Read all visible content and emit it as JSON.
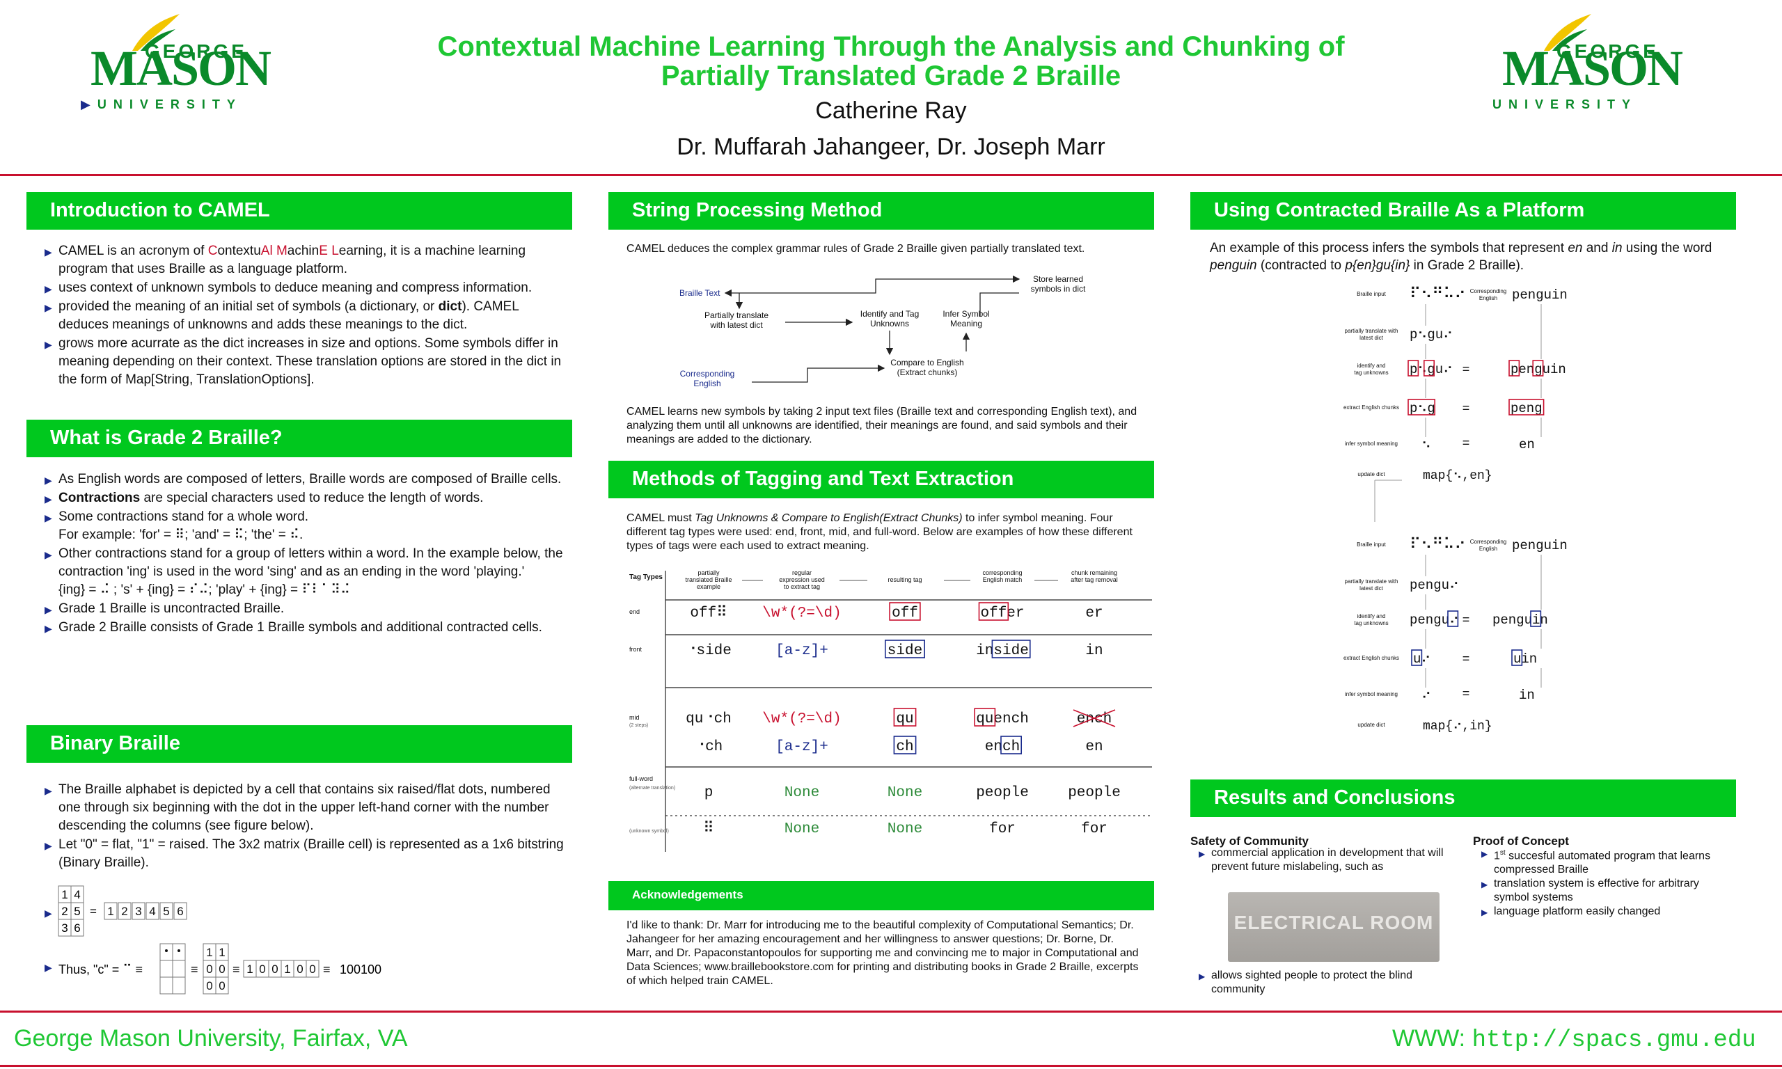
{
  "header": {
    "title_line1": "Contextual Machine Learning Through the Analysis and Chunking of",
    "title_line2": "Partially Translated Grade 2 Braille",
    "author": "Catherine Ray",
    "advisors": "Dr. Muffarah Jahangeer, Dr. Joseph Marr",
    "logo": {
      "george": "GEORGE",
      "mason": "MASON",
      "university": "UNIVERSITY"
    }
  },
  "intro": {
    "heading": "Introduction to CAMEL",
    "b1_pre": "CAMEL is an acronym of ",
    "b1_acr": [
      {
        "t": "C",
        "red": true
      },
      {
        "t": "ontextu",
        "red": false
      },
      {
        "t": "Al",
        "red": true
      },
      {
        "t": " ",
        "red": false
      },
      {
        "t": "M",
        "red": true
      },
      {
        "t": "achin",
        "red": false
      },
      {
        "t": "E",
        "red": true
      },
      {
        "t": " ",
        "red": false
      },
      {
        "t": "L",
        "red": true
      },
      {
        "t": "earning",
        "red": false
      }
    ],
    "b1_post": ", it is a machine learning program that uses Braille as a language platform.",
    "b2": "uses context of unknown symbols to deduce meaning and compress information.",
    "b3_pre": "provided the meaning of an initial set of symbols (a dictionary, or ",
    "b3_bold": "dict",
    "b3_post": "). CAMEL deduces meanings of unknowns and adds these meanings to the dict.",
    "b4": "grows more acurrate as the dict increases in size and options. Some symbols differ in meaning depending on their context. These translation options are stored in the dict in the form of Map[String, TranslationOptions]."
  },
  "grade2": {
    "heading": "What is Grade 2 Braille?",
    "b1": "As English words are composed of letters, Braille words are composed of Braille cells.",
    "b2_bold": "Contractions",
    "b2_rest": " are special characters used to reduce the length of words.",
    "b3": "Some contractions stand for a whole word.",
    "b3_example": "For example: 'for' = ⠿; 'and' = ⠯; 'the' = ⠮.",
    "b4": "Other contractions stand for a group of letters within a word. In the example below, the contraction 'ing' is used in the word 'sing' and as an ending in the word 'playing.'",
    "b4_example": "{ing} = ⠬ ; 's' + {ing} = ⠎⠬; 'play' + {ing} = ⠏⠇⠁⠽⠬",
    "b5": "Grade 1 Braille is uncontracted Braille.",
    "b6": "Grade 2 Braille consists of Grade 1 Braille symbols and additional contracted cells."
  },
  "binary": {
    "heading": "Binary Braille",
    "b1": "The Braille alphabet is depicted by a cell that contains six raised/flat dots, numbered one through six beginning with the dot in the upper left-hand corner with the number descending the columns (see figure below).",
    "b2": "Let \"0\" = flat, \"1\" = raised. The 3x2 matrix (Braille cell) is represented as a 1x6 bitstring (Binary Braille).",
    "cell_numbers": [
      "1",
      "4",
      "2",
      "5",
      "3",
      "6"
    ],
    "eq_sign": "=",
    "bitstring_positions": [
      "1",
      "2",
      "3",
      "4",
      "5",
      "6"
    ],
    "thus_pre": "Thus, \"c\" = ⠉ ≡",
    "bits": [
      "1",
      "1",
      "0",
      "0",
      "0",
      "0"
    ],
    "bit_row": [
      "1",
      "0",
      "0",
      "1",
      "0",
      "0"
    ],
    "result": "100100",
    "equiv": "≡"
  },
  "string_proc": {
    "heading": "String Processing Method",
    "intro": "CAMEL deduces the complex grammar rules of Grade 2 Braille given partially translated text.",
    "flow": {
      "braille_text": "Braille Text",
      "partial_l1": "Partially translate",
      "partial_l2": "with latest dict",
      "identify_l1": "Identify and Tag",
      "identify_l2": "Unknowns",
      "infer_l1": "Infer Symbol",
      "infer_l2": "Meaning",
      "store_l1": "Store learned",
      "store_l2": "symbols in dict",
      "compare_l1": "Compare to English",
      "compare_l2": "(Extract chunks)",
      "eng_l1": "Corresponding",
      "eng_l2": "English"
    },
    "body": "CAMEL learns new symbols by taking 2 input text files (Braille text and corresponding English text), and analyzing them until all unknowns are identified, their meanings are found, and said symbols and their meanings are added to the dictionary."
  },
  "tagging": {
    "heading": "Methods of Tagging and Text Extraction",
    "p_pre": "CAMEL must ",
    "p_em": "Tag Unknowns & Compare to English(Extract Chunks)",
    "p_post": " to infer symbol meaning. Four different tag types were used: end, front, mid, and full-word. Below are examples of how these different types of tags were each used to extract meaning.",
    "table": {
      "h_tag": "Tag Types",
      "h_partial": [
        "partially",
        "translated Braille",
        "example"
      ],
      "h_regex": [
        "regular",
        "expression used",
        "to extract tag"
      ],
      "h_result": "resulting tag",
      "h_match": [
        "corresponding",
        "English match"
      ],
      "h_remain": [
        "chunk remaining",
        "after tag removal"
      ],
      "rows": [
        {
          "type": "end",
          "partial": "off⠿",
          "regex": "\\w*(?=\\d)",
          "tag": "off",
          "match_tag": "off",
          "match_rest": "er",
          "remain": "er"
        },
        {
          "type": "front",
          "partial": "⠐side",
          "regex": "[a-z]+",
          "tag": "side",
          "match_pre": "in",
          "match_tag": "side",
          "remain": "in"
        },
        {
          "type": "mid",
          "type2": "(2 steps)",
          "partial": "qu⠐ch",
          "regex": "\\w*(?=\\d)",
          "tag": "qu",
          "match_tag": "qu",
          "match_rest": "ench",
          "remain": "ench"
        },
        {
          "partial": "⠐ch",
          "regex": "[a-z]+",
          "tag": "ch",
          "match_pre": "en",
          "match_tag": "ch",
          "remain": "en"
        },
        {
          "type": "full-word",
          "type2": "(alternate translation)",
          "partial": "p",
          "regex": "None",
          "tag": "None",
          "match": "people",
          "remain": "people"
        },
        {
          "type2": "(unknown symbol)",
          "partial": "⠿",
          "regex": "None",
          "tag": "None",
          "match": "for",
          "remain": "for"
        }
      ]
    }
  },
  "ack": {
    "heading": "Acknowledgements",
    "body": "I'd like to thank: Dr. Marr for introducing me to the beautiful complexity of Computational Semantics; Dr. Jahangeer for her amazing encouragement and her willingness to answer questions; Dr. Borne, Dr. Marr, and Dr. Papaconstantopoulos for supporting me and convincing me to major in Computational and Data Sciences; www.braillebookstore.com for printing and distributing books in Grade 2 Braille, excerpts of which helped train CAMEL."
  },
  "platform": {
    "heading": "Using Contracted Braille As a Platform",
    "p1_pre": "An example of this process infers the symbols that represent ",
    "p1_en": "en",
    "p1_and": " and ",
    "p1_in": "in",
    "p1_mid": " using the word ",
    "p1_penguin": "penguin",
    "p1_paren": " (contracted to ",
    "p1_contracted": "p{en}gu{in}",
    "p1_end": " in Grade 2 Braille).",
    "fig": {
      "labels": [
        "Braille input",
        "partially translate with latest dict",
        "identify and tag unknowns",
        "extract English chunks",
        "infer symbol meaning",
        "update dict"
      ],
      "corr": "Corresponding English",
      "ex1": {
        "braille": "⠏⠢⠛⠥⠔",
        "eng": "penguin",
        "partial": "p⠢gu⠔",
        "tag_a": "p",
        "tag_b": "⠢",
        "rest1": "gu⠔",
        "eng_a": "p",
        "eng_b": "en",
        "eng_c": "gu",
        "eng_d": "in",
        "chunk_a": "p⠢",
        "chunk_b": "g",
        "eng_chunk": "peng",
        "sym": "⠢",
        "meaning": "en",
        "map": "map{⠢,en}"
      },
      "ex2": {
        "braille": "⠏⠢⠛⠥⠔",
        "eng": "penguin",
        "partial": "pengu⠔",
        "tag_rest": "pengu",
        "tag": "⠔",
        "eng_pre": "pengu",
        "eng_tag": "i",
        "eng_post": "n",
        "chunk_a": "u",
        "chunk_b": "⠔",
        "eng_chunk_a": "u",
        "eng_chunk_b": "in",
        "sym": "⠔",
        "meaning": "in",
        "map": "map{⠔,in}"
      },
      "eq": "="
    }
  },
  "results": {
    "heading": "Results and Conclusions",
    "safety_title": "Safety of Community",
    "safety_b1_l1": "commercial application in development that will",
    "safety_b1_l2": "prevent future mislabeling, such as",
    "photo_text": "ELECTRICAL ROOM",
    "safety_b2": "allows sighted people to protect the blind community",
    "proof_title": "Proof of Concept",
    "proof_b1_pre": "1",
    "proof_b1_sup": "st",
    "proof_b1_post": " succesful automated program that learns compressed Braille",
    "proof_b2": "translation system is effective for arbitrary symbol systems",
    "proof_b3": "language platform easily changed"
  },
  "footer": {
    "left": "George Mason University, Fairfax, VA",
    "www": "WWW:",
    "url": "http://spacs.gmu.edu"
  },
  "colors": {
    "green": "#00c81e",
    "title_green": "#1fc734",
    "rule_red": "#c8102e",
    "bullet_blue": "#1a2b8c"
  }
}
